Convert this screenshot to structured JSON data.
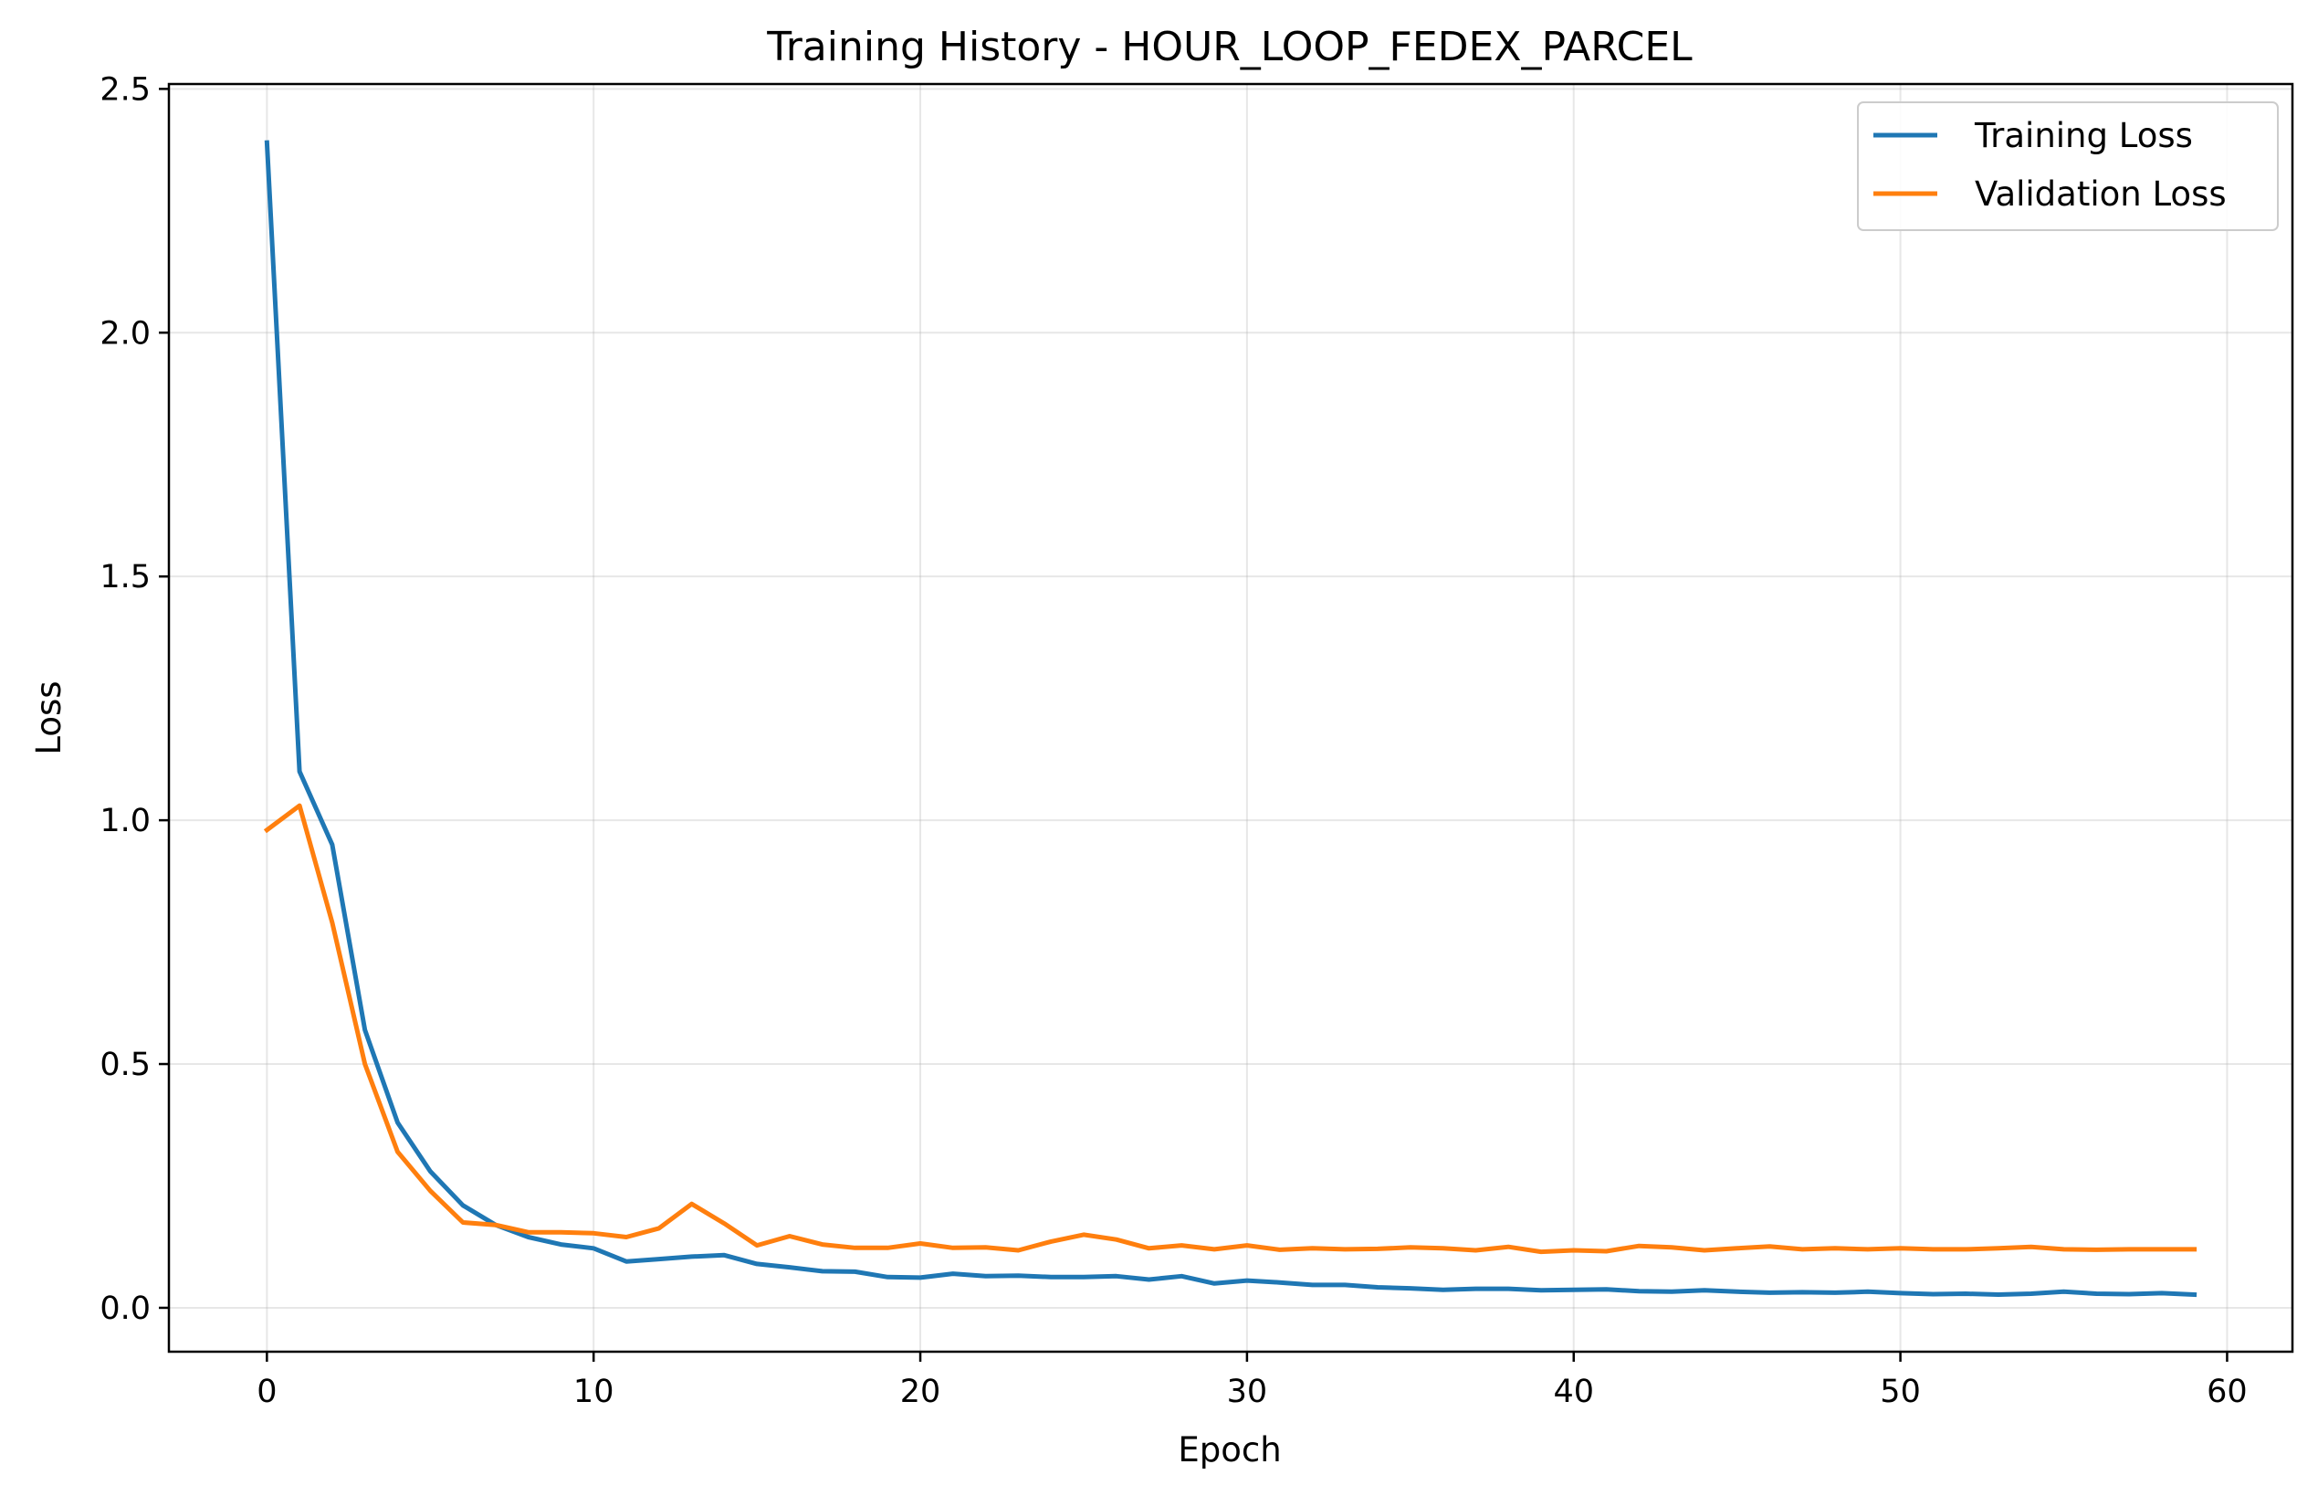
{
  "chart_data": {
    "type": "line",
    "title": "Training History - HOUR_LOOP_FEDEX_PARCEL",
    "xlabel": "Epoch",
    "ylabel": "Loss",
    "xlim": [
      -3,
      62
    ],
    "ylim": [
      -0.09,
      2.51
    ],
    "xticks": [
      0,
      10,
      20,
      30,
      40,
      50,
      60
    ],
    "yticks": [
      0.0,
      0.5,
      1.0,
      1.5,
      2.0,
      2.5
    ],
    "xtick_labels": [
      "0",
      "10",
      "20",
      "30",
      "40",
      "50",
      "60"
    ],
    "ytick_labels": [
      "0.0",
      "0.5",
      "1.0",
      "1.5",
      "2.0",
      "2.5"
    ],
    "grid": true,
    "legend_position": "top-right",
    "x": [
      0,
      1,
      2,
      3,
      4,
      5,
      6,
      7,
      8,
      9,
      10,
      11,
      12,
      13,
      14,
      15,
      16,
      17,
      18,
      19,
      20,
      21,
      22,
      23,
      24,
      25,
      26,
      27,
      28,
      29,
      30,
      31,
      32,
      33,
      34,
      35,
      36,
      37,
      38,
      39,
      40,
      41,
      42,
      43,
      44,
      45,
      46,
      47,
      48,
      49,
      50,
      51,
      52,
      53,
      54,
      55,
      56,
      57,
      58,
      59
    ],
    "series": [
      {
        "name": "Training Loss",
        "color": "#1f77b4",
        "values": [
          2.39,
          1.1,
          0.95,
          0.57,
          0.38,
          0.28,
          0.21,
          0.17,
          0.145,
          0.13,
          0.122,
          0.095,
          0.1,
          0.105,
          0.108,
          0.09,
          0.083,
          0.075,
          0.074,
          0.063,
          0.062,
          0.07,
          0.065,
          0.066,
          0.063,
          0.063,
          0.065,
          0.058,
          0.065,
          0.05,
          0.056,
          0.052,
          0.047,
          0.047,
          0.042,
          0.04,
          0.037,
          0.039,
          0.039,
          0.036,
          0.037,
          0.038,
          0.034,
          0.033,
          0.036,
          0.033,
          0.031,
          0.032,
          0.031,
          0.033,
          0.03,
          0.028,
          0.029,
          0.027,
          0.029,
          0.033,
          0.029,
          0.028,
          0.03,
          0.027
        ]
      },
      {
        "name": "Validation Loss",
        "color": "#ff7f0e",
        "values": [
          0.98,
          1.03,
          0.79,
          0.5,
          0.32,
          0.24,
          0.175,
          0.17,
          0.155,
          0.155,
          0.153,
          0.145,
          0.163,
          0.213,
          0.173,
          0.128,
          0.147,
          0.13,
          0.123,
          0.123,
          0.132,
          0.123,
          0.124,
          0.118,
          0.136,
          0.15,
          0.14,
          0.122,
          0.128,
          0.12,
          0.128,
          0.119,
          0.122,
          0.12,
          0.121,
          0.124,
          0.122,
          0.118,
          0.125,
          0.115,
          0.118,
          0.116,
          0.127,
          0.124,
          0.118,
          0.122,
          0.126,
          0.12,
          0.122,
          0.12,
          0.122,
          0.12,
          0.12,
          0.122,
          0.125,
          0.12,
          0.119,
          0.12,
          0.12,
          0.12
        ]
      }
    ]
  }
}
